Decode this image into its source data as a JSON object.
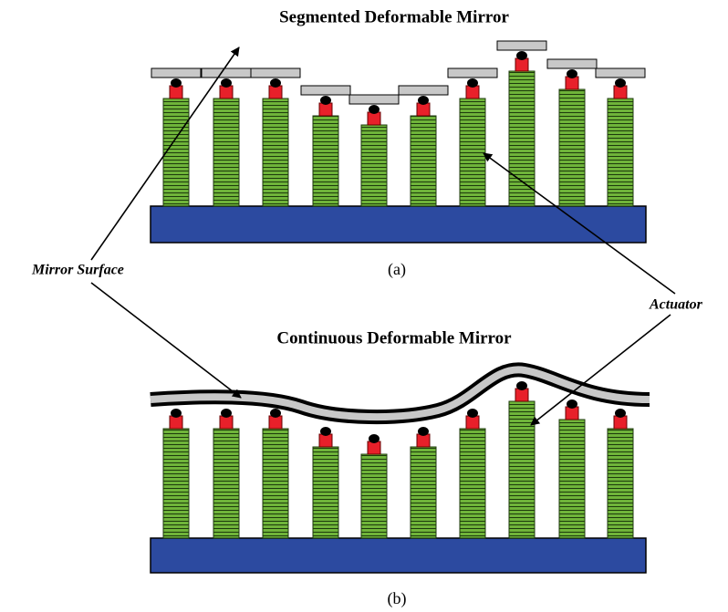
{
  "diagram": {
    "segmented": {
      "title": "Segmented Deformable Mirror",
      "caption": "(a)"
    },
    "continuous": {
      "title": "Continuous Deformable Mirror",
      "caption": "(b)"
    },
    "labels": {
      "mirror_surface": "Mirror Surface",
      "actuator": "Actuator"
    }
  }
}
